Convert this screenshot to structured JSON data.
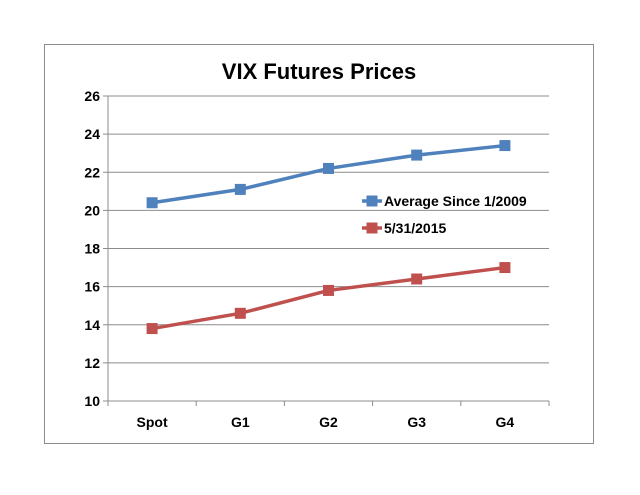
{
  "chart_data": {
    "type": "line",
    "title": "VIX Futures Prices",
    "categories": [
      "Spot",
      "G1",
      "G2",
      "G3",
      "G4"
    ],
    "series": [
      {
        "name": "Average Since 1/2009",
        "values": [
          20.4,
          21.1,
          22.2,
          22.9,
          23.4
        ],
        "color": "#4f81bd"
      },
      {
        "name": "5/31/2015",
        "values": [
          13.8,
          14.6,
          15.8,
          16.4,
          17.0
        ],
        "color": "#c0504d"
      }
    ],
    "ylim": [
      10,
      26
    ],
    "yticks": [
      "10",
      "12",
      "14",
      "16",
      "18",
      "20",
      "22",
      "24",
      "26"
    ],
    "grid": true,
    "legend": "right-middle",
    "xlabel": "",
    "ylabel": ""
  }
}
